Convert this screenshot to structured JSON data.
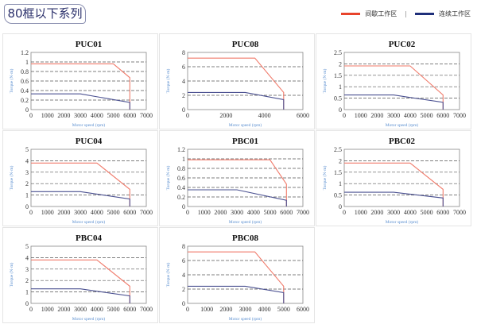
{
  "header": {
    "title": "80框以下系列"
  },
  "legend": {
    "items": [
      {
        "label": "间歇工作区",
        "color": "#e8442c"
      },
      {
        "label": "连续工作区",
        "color": "#1f2f7a"
      }
    ],
    "separator": "|"
  },
  "axis_labels": {
    "x": "Motor speed (rpm)",
    "y": "Torque (N·m)"
  },
  "colors": {
    "intermittent": "#f07a6a",
    "continuous": "#4a5090",
    "grid": "#555555"
  },
  "chart_data": [
    {
      "type": "line",
      "title": "PUC01",
      "xlim": [
        0,
        7000
      ],
      "xticks": [
        0,
        1000,
        2000,
        3000,
        4000,
        5000,
        6000,
        7000
      ],
      "ylim": [
        0,
        1.2
      ],
      "yticks": [
        0,
        0.2,
        0.4,
        0.6,
        0.8,
        1,
        1.2
      ],
      "grid": true,
      "series": [
        {
          "name": "间歇工作区",
          "x": [
            0,
            5000,
            6000,
            6000
          ],
          "y": [
            0.96,
            0.96,
            0.67,
            0
          ]
        },
        {
          "name": "连续工作区",
          "x": [
            0,
            3000,
            6000,
            6000
          ],
          "y": [
            0.33,
            0.33,
            0.15,
            0
          ]
        }
      ]
    },
    {
      "type": "line",
      "title": "PUC08",
      "xlim": [
        0,
        6000
      ],
      "xticks": [
        0,
        2000,
        4000,
        6000
      ],
      "ylim": [
        0,
        8
      ],
      "yticks": [
        0,
        2,
        4,
        6,
        8
      ],
      "grid": true,
      "series": [
        {
          "name": "间歇工作区",
          "x": [
            0,
            3500,
            5000,
            5000
          ],
          "y": [
            7.2,
            7.2,
            2.4,
            0
          ]
        },
        {
          "name": "连续工作区",
          "x": [
            0,
            3000,
            5000,
            5000
          ],
          "y": [
            2.4,
            2.4,
            1.4,
            0
          ]
        }
      ]
    },
    {
      "type": "line",
      "title": "PUC02",
      "xlim": [
        0,
        7000
      ],
      "xticks": [
        0,
        1000,
        2000,
        3000,
        4000,
        5000,
        6000,
        7000
      ],
      "ylim": [
        0,
        2.5
      ],
      "yticks": [
        0,
        0.5,
        1,
        1.5,
        2,
        2.5
      ],
      "grid": true,
      "series": [
        {
          "name": "间歇工作区",
          "x": [
            0,
            4000,
            6000,
            6000
          ],
          "y": [
            1.91,
            1.91,
            0.64,
            0
          ]
        },
        {
          "name": "连续工作区",
          "x": [
            0,
            3000,
            6000,
            6000
          ],
          "y": [
            0.64,
            0.64,
            0.32,
            0
          ]
        }
      ]
    },
    {
      "type": "line",
      "title": "PUC04",
      "xlim": [
        0,
        7000
      ],
      "xticks": [
        0,
        1000,
        2000,
        3000,
        4000,
        5000,
        6000,
        7000
      ],
      "ylim": [
        0,
        5
      ],
      "yticks": [
        0,
        1,
        2,
        3,
        4,
        5
      ],
      "grid": true,
      "series": [
        {
          "name": "间歇工作区",
          "x": [
            0,
            4000,
            6000,
            6000
          ],
          "y": [
            3.8,
            3.8,
            1.5,
            0
          ]
        },
        {
          "name": "连续工作区",
          "x": [
            0,
            3000,
            6000,
            6000
          ],
          "y": [
            1.3,
            1.3,
            0.65,
            0
          ]
        }
      ]
    },
    {
      "type": "line",
      "title": "PBC01",
      "xlim": [
        0,
        7000
      ],
      "xticks": [
        0,
        1000,
        2000,
        3000,
        4000,
        5000,
        6000,
        7000
      ],
      "ylim": [
        0,
        1.2
      ],
      "yticks": [
        0,
        0.2,
        0.4,
        0.6,
        0.8,
        1,
        1.2
      ],
      "grid": true,
      "series": [
        {
          "name": "间歇工作区",
          "x": [
            0,
            5000,
            6000,
            6000
          ],
          "y": [
            0.98,
            0.98,
            0.47,
            0
          ]
        },
        {
          "name": "连续工作区",
          "x": [
            0,
            3000,
            6000,
            6000
          ],
          "y": [
            0.35,
            0.35,
            0.13,
            0
          ]
        }
      ]
    },
    {
      "type": "line",
      "title": "PBC02",
      "xlim": [
        0,
        7000
      ],
      "xticks": [
        0,
        1000,
        2000,
        3000,
        4000,
        5000,
        6000,
        7000
      ],
      "ylim": [
        0,
        2.5
      ],
      "yticks": [
        0,
        0.5,
        1,
        1.5,
        2,
        2.5
      ],
      "grid": true,
      "series": [
        {
          "name": "间歇工作区",
          "x": [
            0,
            4000,
            6000,
            6000
          ],
          "y": [
            1.9,
            1.9,
            0.75,
            0
          ]
        },
        {
          "name": "连续工作区",
          "x": [
            0,
            3000,
            6000,
            6000
          ],
          "y": [
            0.62,
            0.62,
            0.37,
            0
          ]
        }
      ]
    },
    {
      "type": "line",
      "title": "PBC04",
      "xlim": [
        0,
        7000
      ],
      "xticks": [
        0,
        1000,
        2000,
        3000,
        4000,
        5000,
        6000,
        7000
      ],
      "ylim": [
        0,
        5
      ],
      "yticks": [
        0,
        1,
        2,
        3,
        4,
        5
      ],
      "grid": true,
      "series": [
        {
          "name": "间歇工作区",
          "x": [
            0,
            4000,
            6000,
            6000
          ],
          "y": [
            3.8,
            3.8,
            1.5,
            0
          ]
        },
        {
          "name": "连续工作区",
          "x": [
            0,
            3000,
            6000,
            6000
          ],
          "y": [
            1.27,
            1.27,
            0.65,
            0
          ]
        }
      ]
    },
    {
      "type": "line",
      "title": "PBC08",
      "xlim": [
        0,
        6000
      ],
      "xticks": [
        0,
        1000,
        2000,
        3000,
        4000,
        5000,
        6000
      ],
      "ylim": [
        0,
        8
      ],
      "yticks": [
        0,
        2,
        4,
        6,
        8
      ],
      "grid": true,
      "series": [
        {
          "name": "间歇工作区",
          "x": [
            0,
            3500,
            5000,
            5000
          ],
          "y": [
            7.2,
            7.2,
            2.4,
            0
          ]
        },
        {
          "name": "连续工作区",
          "x": [
            0,
            3000,
            5000,
            5000
          ],
          "y": [
            2.4,
            2.4,
            1.5,
            0
          ]
        }
      ]
    }
  ]
}
